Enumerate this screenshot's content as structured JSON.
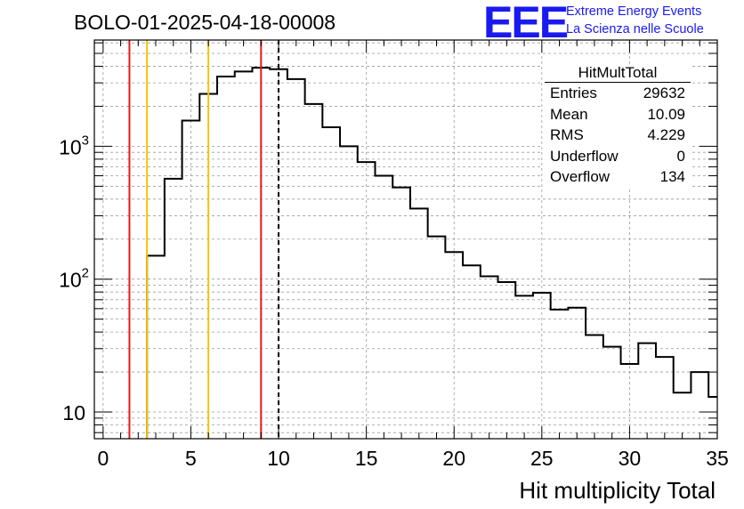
{
  "header": {
    "run_title": "BOLO-01-2025-04-18-00008",
    "logo_text": "EEE",
    "logo_line1": "Extreme Energy Events",
    "logo_line2": "La Scienza nelle Scuole"
  },
  "stats_box": {
    "title": "HitMultTotal",
    "rows": [
      {
        "label": "Entries",
        "value": "29632"
      },
      {
        "label": "Mean",
        "value": "10.09"
      },
      {
        "label": "RMS",
        "value": "4.229"
      },
      {
        "label": "Underflow",
        "value": "0"
      },
      {
        "label": "Overflow",
        "value": "134"
      }
    ]
  },
  "colors": {
    "histogram": "#000000",
    "red_line": "#e8191b",
    "yellow_line": "#f5c400",
    "grid": "#9a9a9a",
    "logo": "#1a1af0"
  },
  "chart_data": {
    "type": "histogram",
    "title": "BOLO-01-2025-04-18-00008",
    "xlabel": "Hit multiplicity Total",
    "ylabel": "",
    "yscale": "log",
    "xlim": [
      -0.5,
      35.0
    ],
    "ylim": [
      6.3,
      6300
    ],
    "grid": true,
    "bin_edges": [
      2.5,
      3.5,
      4.5,
      5.5,
      6.5,
      7.5,
      8.5,
      9.5,
      10.5,
      11.5,
      12.5,
      13.5,
      14.5,
      15.5,
      16.5,
      17.5,
      18.5,
      19.5,
      20.5,
      21.5,
      22.5,
      23.5,
      24.5,
      25.5,
      26.5,
      27.5,
      28.5,
      29.5,
      30.5,
      31.5,
      32.5,
      33.5,
      34.5,
      35.0
    ],
    "counts": [
      150,
      570,
      1560,
      2480,
      3350,
      3650,
      3900,
      3800,
      3200,
      2080,
      1390,
      1000,
      760,
      600,
      490,
      340,
      210,
      160,
      127,
      105,
      95,
      75,
      79,
      59,
      61,
      38,
      31,
      23,
      33,
      26,
      14,
      20,
      13
    ],
    "x_ticks": [
      0,
      5,
      10,
      15,
      20,
      25,
      30,
      35
    ],
    "x_tick_labels": [
      "0",
      "5",
      "10",
      "15",
      "20",
      "25",
      "30",
      "35"
    ],
    "y_ticks": [
      10,
      100,
      1000
    ],
    "y_tick_labels": [
      "10",
      "10",
      "10"
    ],
    "y_tick_exponents": [
      "",
      "2",
      "3"
    ],
    "vertical_lines": [
      {
        "name": "red-line-1",
        "x": 1.5,
        "color": "red",
        "style": "solid"
      },
      {
        "name": "yellow-line-1",
        "x": 2.5,
        "color": "yellow",
        "style": "solid"
      },
      {
        "name": "yellow-line-2",
        "x": 6.0,
        "color": "yellow",
        "style": "solid"
      },
      {
        "name": "red-line-2",
        "x": 9.0,
        "color": "red",
        "style": "solid"
      },
      {
        "name": "mean-line",
        "x": 10.0,
        "color": "black",
        "style": "dashed"
      }
    ]
  }
}
